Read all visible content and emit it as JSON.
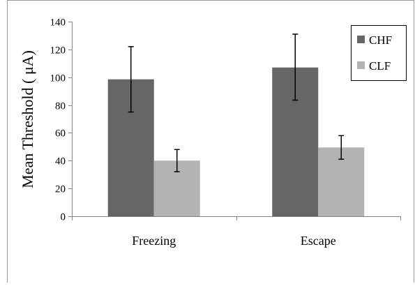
{
  "chart_data": {
    "type": "bar",
    "title": "",
    "xlabel": "",
    "ylabel": "Mean Threshold ( μA)",
    "categories": [
      "Freezing",
      "Escape"
    ],
    "ylim": [
      0,
      140
    ],
    "yticks": [
      0,
      20,
      40,
      60,
      80,
      100,
      120,
      140
    ],
    "grid": false,
    "legend_position": "top-right",
    "series": [
      {
        "name": "CHF",
        "color": "#666666",
        "values": [
          98.5,
          107
        ],
        "error_low": [
          75,
          83.5
        ],
        "error_high": [
          122,
          131
        ]
      },
      {
        "name": "CLF",
        "color": "#b3b3b3",
        "values": [
          40,
          49.5
        ],
        "error_low": [
          32,
          41
        ],
        "error_high": [
          48,
          58
        ]
      }
    ]
  }
}
